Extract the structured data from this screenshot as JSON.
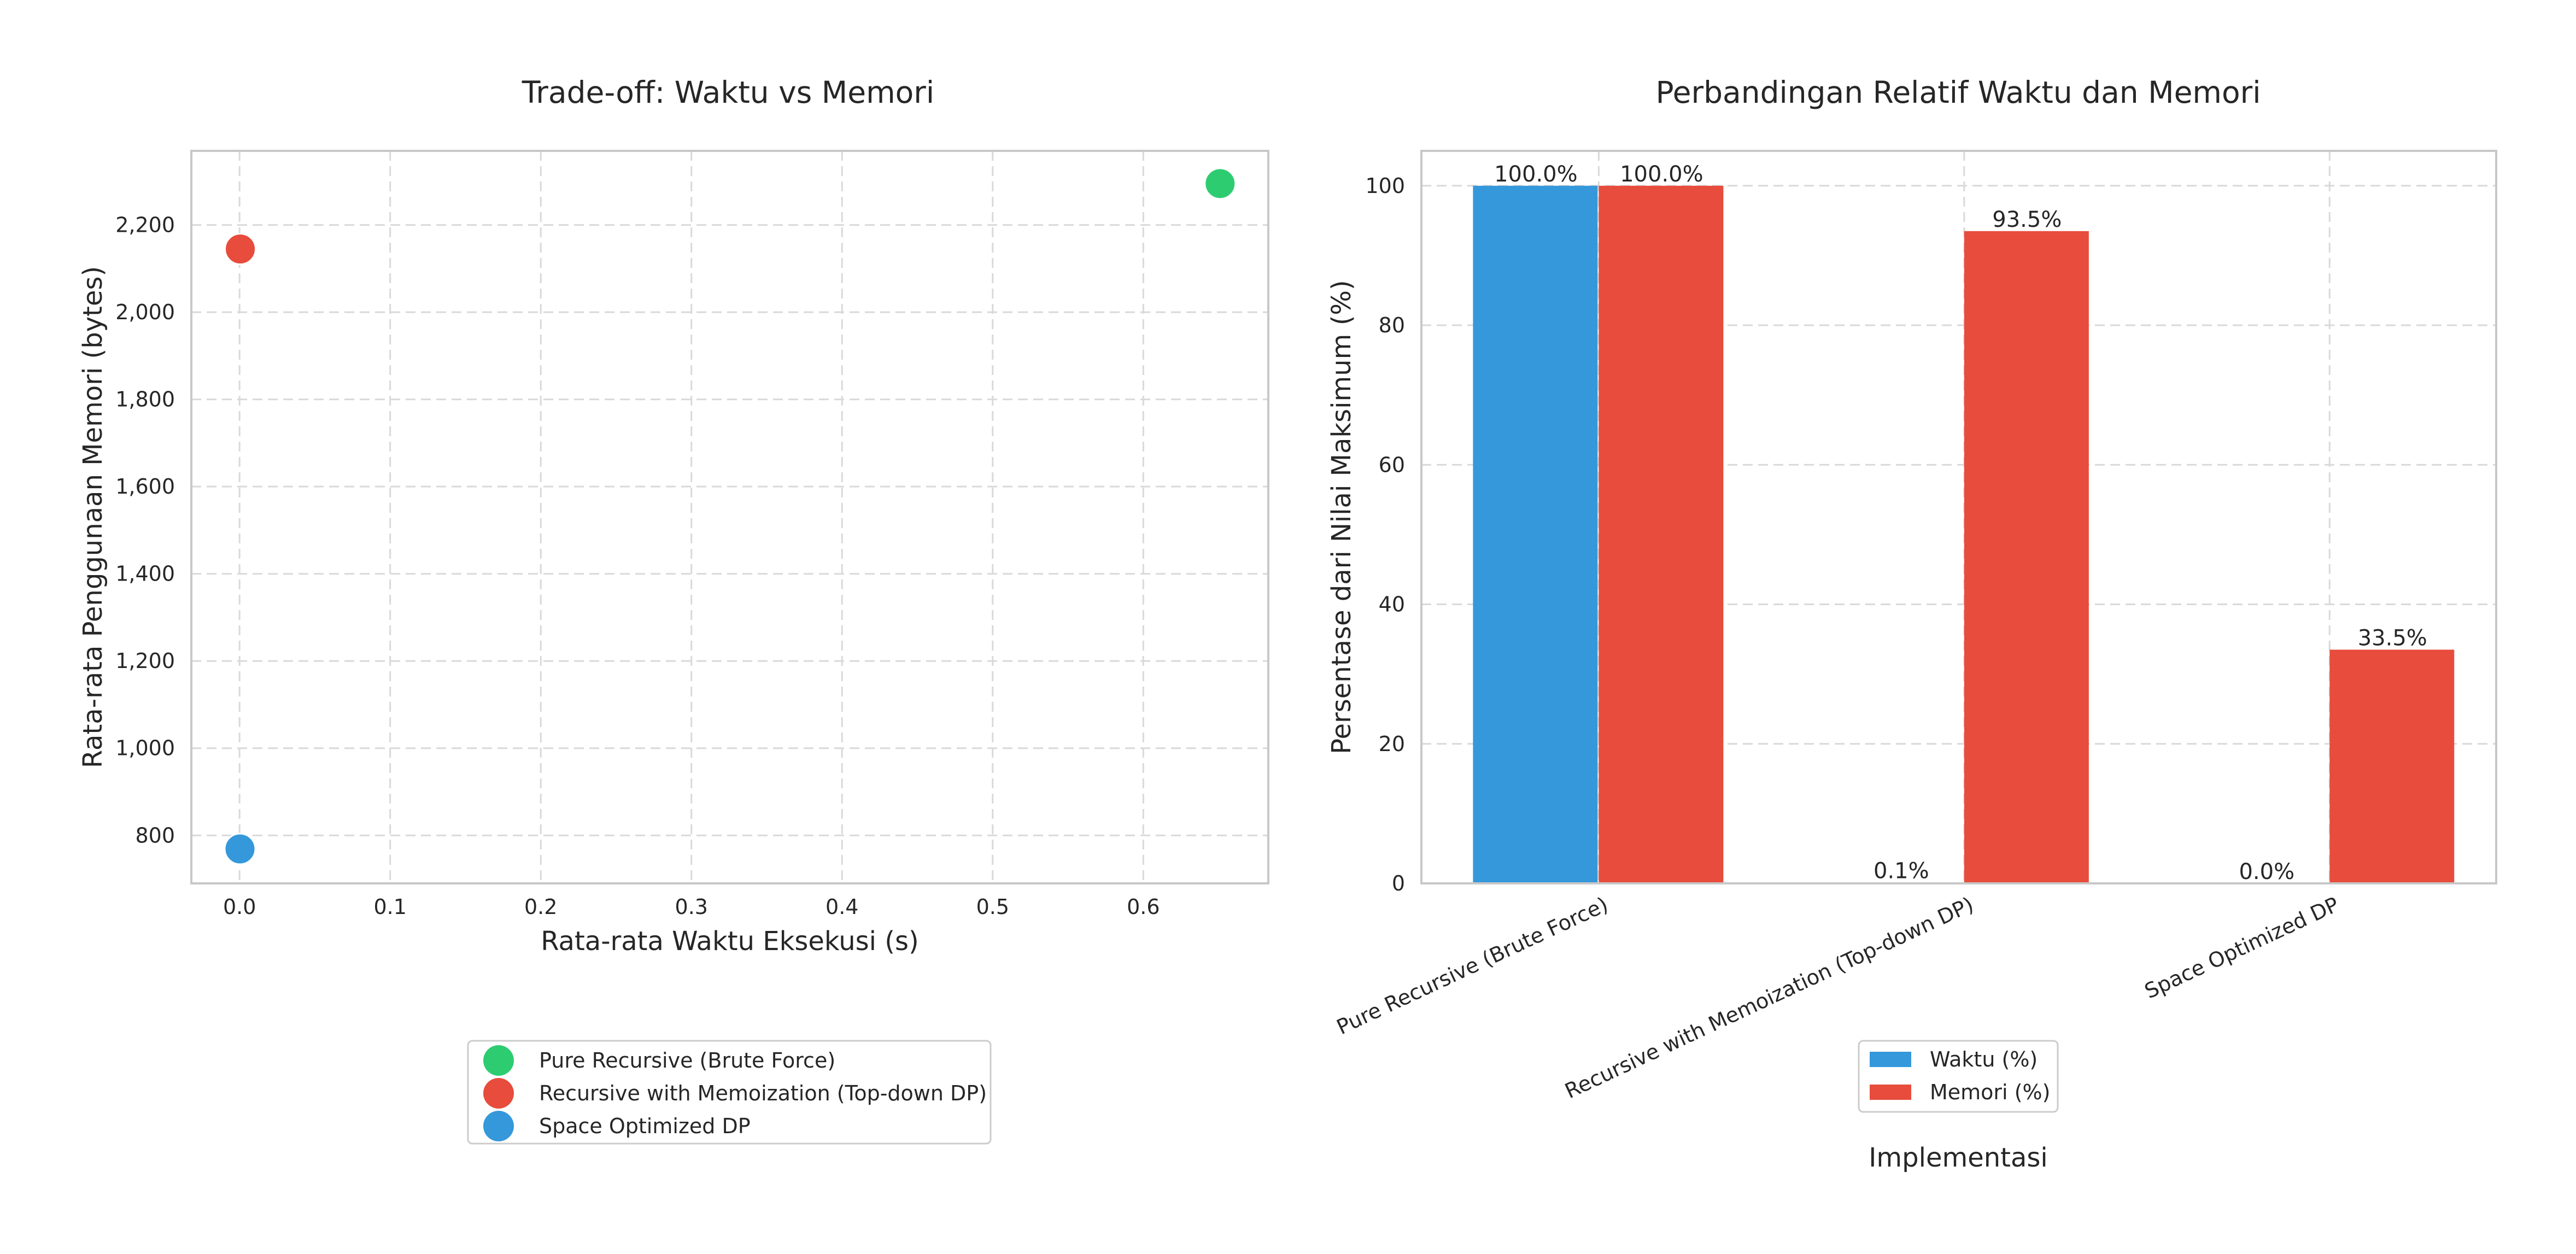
{
  "chart_data": [
    {
      "type": "scatter",
      "title": "Trade-off: Waktu vs Memori",
      "xlabel": "Rata-rata Waktu Eksekusi (s)",
      "ylabel": "Rata-rata Penggunaan Memori (bytes)",
      "xlim": [
        -0.032,
        0.683
      ],
      "ylim": [
        690,
        2370
      ],
      "xticks": [
        0.0,
        0.1,
        0.2,
        0.3,
        0.4,
        0.5,
        0.6
      ],
      "xtick_labels": [
        "0.0",
        "0.1",
        "0.2",
        "0.3",
        "0.4",
        "0.5",
        "0.6"
      ],
      "yticks": [
        800,
        1000,
        1200,
        1400,
        1600,
        1800,
        2000,
        2200
      ],
      "ytick_labels": [
        "800",
        "1,000",
        "1,200",
        "1,400",
        "1,600",
        "1,800",
        "2,000",
        "2,200"
      ],
      "grid": true,
      "legend_position": "below",
      "series": [
        {
          "name": "Pure Recursive (Brute Force)",
          "color": "#2ecc71",
          "x": [
            0.651
          ],
          "y": [
            2295
          ]
        },
        {
          "name": "Recursive with Memoization (Top-down DP)",
          "color": "#e74c3c",
          "x": [
            0.0005
          ],
          "y": [
            2145
          ]
        },
        {
          "name": "Space Optimized DP",
          "color": "#3498db",
          "x": [
            0.0003
          ],
          "y": [
            769
          ]
        }
      ]
    },
    {
      "type": "bar",
      "title": "Perbandingan Relatif Waktu dan Memori",
      "xlabel": "Implementasi",
      "ylabel": "Persentase dari Nilai Maksimum (%)",
      "ylim": [
        0,
        105
      ],
      "yticks": [
        0,
        20,
        40,
        60,
        80,
        100
      ],
      "ytick_labels": [
        "0",
        "20",
        "40",
        "60",
        "80",
        "100"
      ],
      "grid": true,
      "legend_position": "below",
      "categories": [
        "Pure Recursive (Brute Force)",
        "Recursive with Memoization (Top-down DP)",
        "Space Optimized DP"
      ],
      "series": [
        {
          "name": "Waktu (%)",
          "color": "#3498db",
          "values": [
            100.0,
            0.1,
            0.0
          ],
          "labels": [
            "100.0%",
            "0.1%",
            "0.0%"
          ]
        },
        {
          "name": "Memori (%)",
          "color": "#e74c3c",
          "values": [
            100.0,
            93.5,
            33.5
          ],
          "labels": [
            "100.0%",
            "93.5%",
            "33.5%"
          ]
        }
      ]
    }
  ]
}
